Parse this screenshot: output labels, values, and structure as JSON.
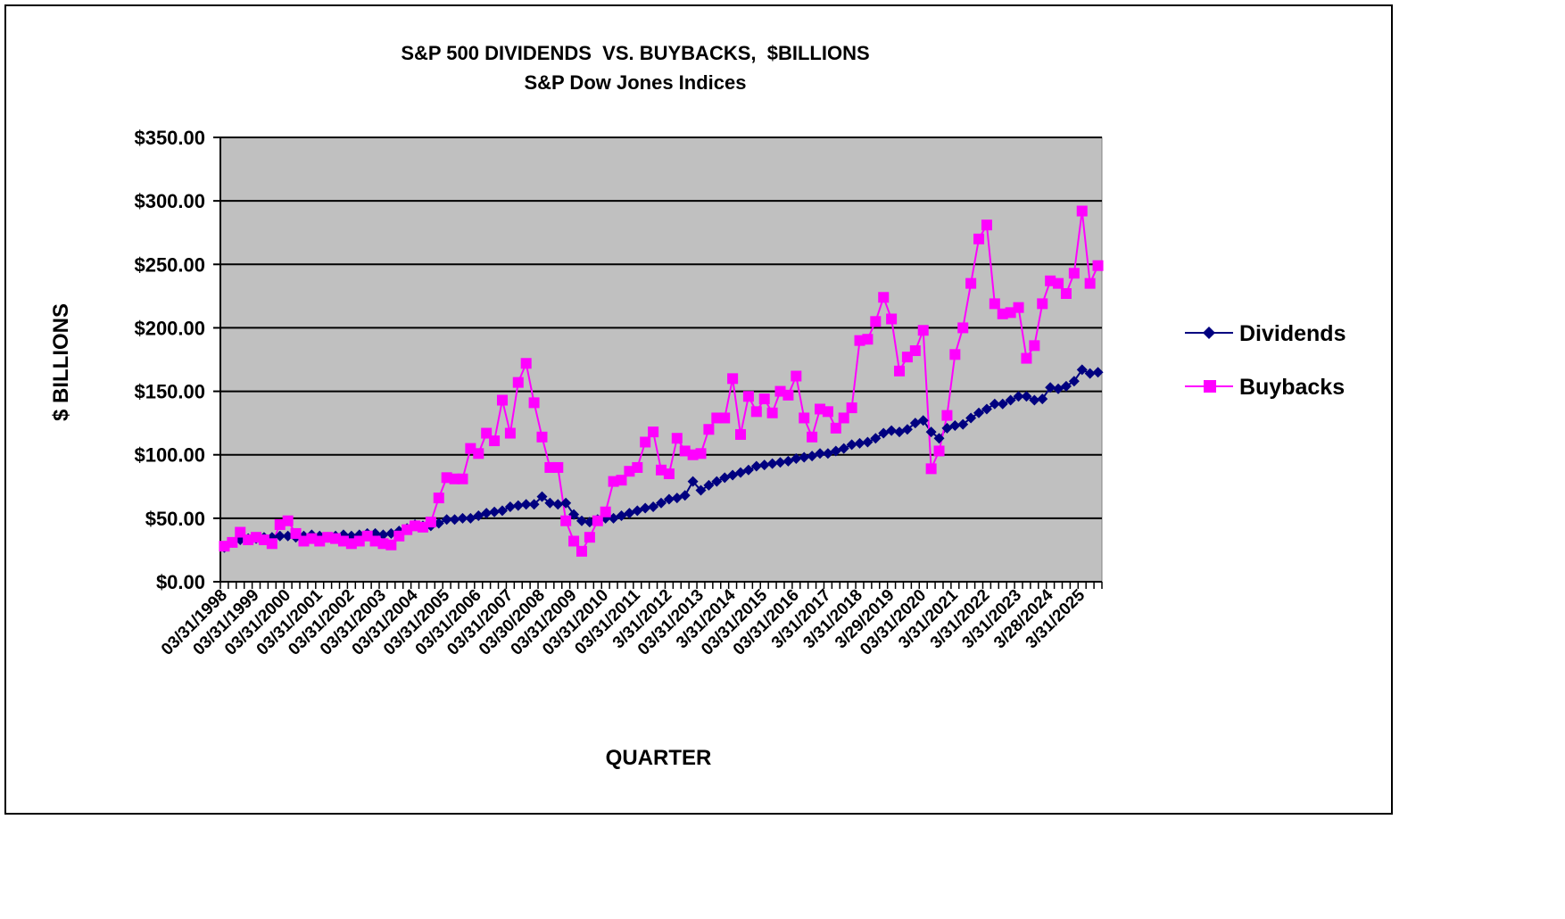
{
  "chart_data": {
    "type": "line",
    "title": "S&P 500 DIVIDENDS  VS. BUYBACKS,  $BILLIONS",
    "subtitle": "S&P Dow Jones Indices",
    "xlabel": "QUARTER",
    "ylabel": "$ BILLIONS",
    "ylim": [
      0,
      350
    ],
    "yticks": [
      "$0.00",
      "$50.00",
      "$100.00",
      "$150.00",
      "$200.00",
      "$250.00",
      "$300.00",
      "$350.00"
    ],
    "grid": true,
    "legend": "right",
    "plot_background": "#C0C0C0",
    "x_tick_labels": [
      "03/31/1998",
      "03/31/1999",
      "03/31/2000",
      "03/31/2001",
      "03/31/2002",
      "03/31/2003",
      "03/31/2004",
      "03/31/2005",
      "03/31/2006",
      "03/31/2007",
      "03/30/2008",
      "03/31/2009",
      "03/31/2010",
      "03/31/2011",
      "3/31/2012",
      "03/31/2013",
      "3/31/2014",
      "03/31/2015",
      "03/31/2016",
      "3/31/2017",
      "3/31/2018",
      "3/29/2019",
      "03/31/2020",
      "3/31/2021",
      "3/31/2022",
      "3/31/2023",
      "3/28/2024",
      "3/31/2025"
    ],
    "x_start": "1998 Q1",
    "x_end": "2025 Q3",
    "series": [
      {
        "name": "Dividends",
        "color": "#000080",
        "marker": "diamond",
        "values": [
          27,
          31,
          33,
          34,
          34,
          35,
          35,
          36,
          36,
          35,
          36,
          37,
          36,
          35,
          36,
          37,
          36,
          37,
          38,
          38,
          37,
          38,
          40,
          42,
          45,
          44,
          44,
          46,
          49,
          49,
          50,
          50,
          52,
          54,
          55,
          56,
          59,
          60,
          61,
          61,
          67,
          62,
          61,
          62,
          53,
          48,
          47,
          49,
          50,
          50,
          52,
          54,
          56,
          58,
          59,
          62,
          65,
          66,
          68,
          79,
          72,
          76,
          79,
          82,
          84,
          86,
          88,
          91,
          92,
          93,
          94,
          95,
          97,
          98,
          99,
          101,
          101,
          103,
          105,
          108,
          109,
          110,
          113,
          117,
          119,
          118,
          120,
          125,
          127,
          118,
          113,
          121,
          123,
          124,
          129,
          133,
          136,
          140,
          140,
          143,
          146,
          146,
          143,
          144,
          153,
          152,
          154,
          158,
          167,
          164,
          165
        ]
      },
      {
        "name": "Buybacks",
        "color": "#FF00FF",
        "marker": "square",
        "values": [
          28,
          31,
          39,
          33,
          35,
          33,
          30,
          45,
          48,
          38,
          32,
          34,
          32,
          35,
          34,
          32,
          30,
          32,
          36,
          32,
          30,
          29,
          36,
          41,
          44,
          43,
          47,
          66,
          82,
          81,
          81,
          105,
          101,
          117,
          111,
          143,
          117,
          157,
          172,
          141,
          114,
          90,
          90,
          48,
          32,
          24,
          35,
          48,
          55,
          79,
          80,
          87,
          90,
          110,
          118,
          88,
          85,
          113,
          103,
          100,
          101,
          120,
          129,
          129,
          160,
          116,
          146,
          134,
          144,
          133,
          150,
          147,
          162,
          129,
          114,
          136,
          134,
          121,
          129,
          137,
          190,
          191,
          205,
          224,
          207,
          166,
          177,
          182,
          198,
          89,
          103,
          131,
          179,
          200,
          235,
          270,
          281,
          219,
          211,
          212,
          216,
          176,
          186,
          219,
          237,
          235,
          227,
          243,
          292,
          235,
          249
        ]
      }
    ]
  }
}
